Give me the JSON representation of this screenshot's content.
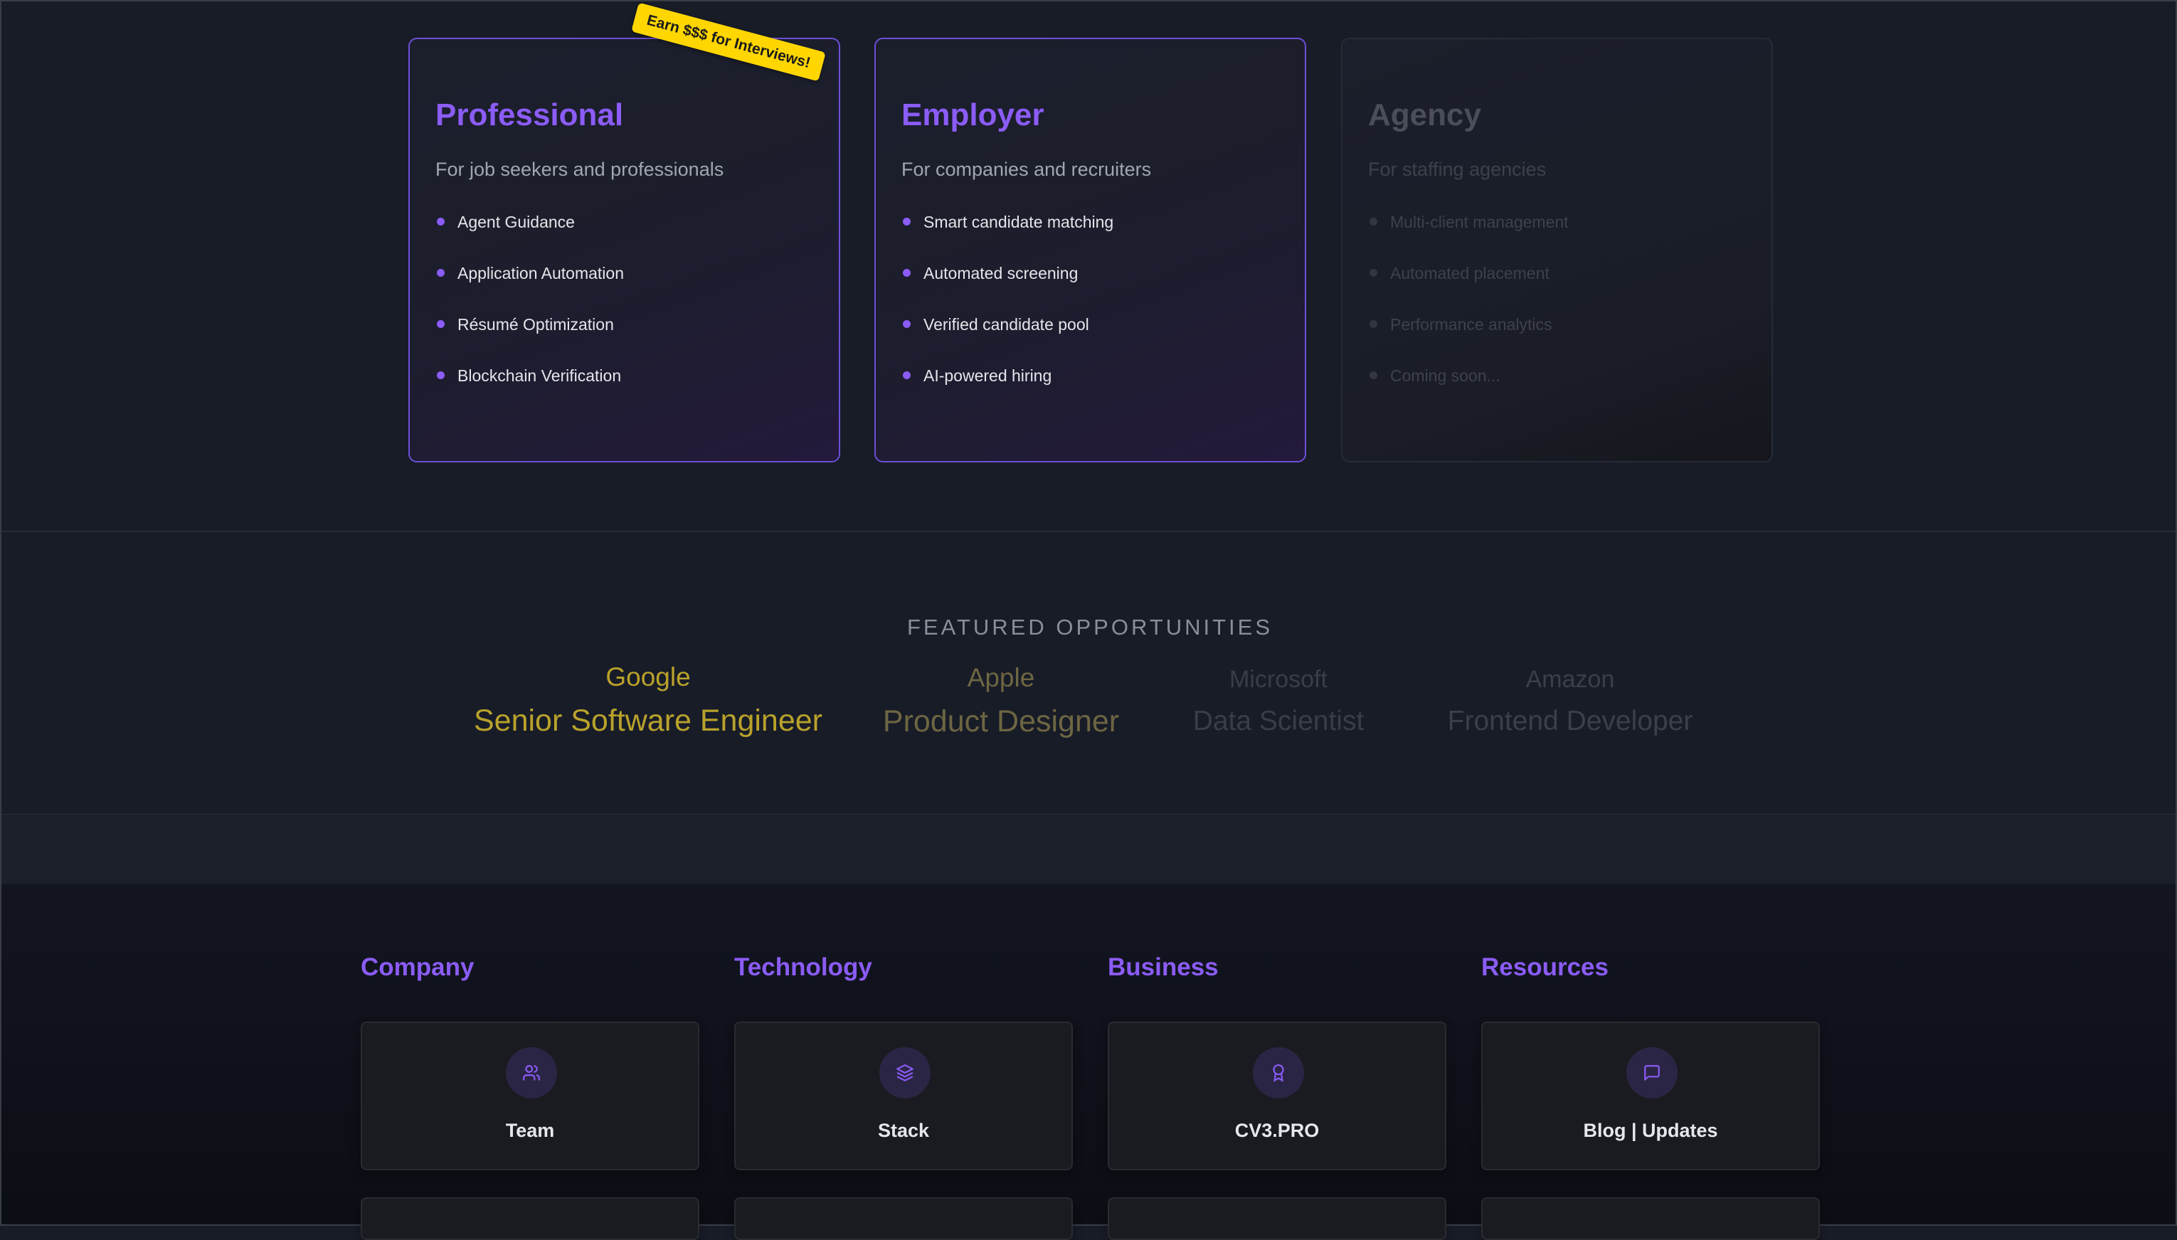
{
  "plans": [
    {
      "title": "Professional",
      "subtitle": "For job seekers and professionals",
      "features": [
        "Agent Guidance",
        "Application Automation",
        "Résumé Optimization",
        "Blockchain Verification"
      ],
      "badge": "Earn $$$ for Interviews!",
      "state": "active"
    },
    {
      "title": "Employer",
      "subtitle": "For companies and recruiters",
      "features": [
        "Smart candidate matching",
        "Automated screening",
        "Verified candidate pool",
        "AI-powered hiring"
      ],
      "state": "active"
    },
    {
      "title": "Agency",
      "subtitle": "For staffing agencies",
      "features": [
        "Multi-client management",
        "Automated placement",
        "Performance analytics",
        "Coming soon..."
      ],
      "state": "disabled"
    }
  ],
  "featured": {
    "title": "FEATURED OPPORTUNITIES",
    "items": [
      {
        "company": "Google",
        "role": "Senior Software Engineer",
        "color": "#b9a22b"
      },
      {
        "company": "Apple",
        "role": "Product Designer",
        "color": "#6d6642"
      },
      {
        "company": "Microsoft",
        "role": "Data Scientist",
        "color": "#3a3d48"
      },
      {
        "company": "Amazon",
        "role": "Frontend Developer",
        "color": "#3c3f4a"
      }
    ]
  },
  "footer": {
    "columns": [
      {
        "heading": "Company",
        "card": {
          "label": "Team",
          "icon": "users-icon"
        }
      },
      {
        "heading": "Technology",
        "card": {
          "label": "Stack",
          "icon": "layers-icon"
        }
      },
      {
        "heading": "Business",
        "card": {
          "label": "CV3.PRO",
          "icon": "award-icon"
        }
      },
      {
        "heading": "Resources",
        "card": {
          "label": "Blog | Updates",
          "icon": "message-square-icon"
        }
      }
    ]
  },
  "colors": {
    "accent": "#8b5cf6",
    "badge": "#ffd600"
  }
}
